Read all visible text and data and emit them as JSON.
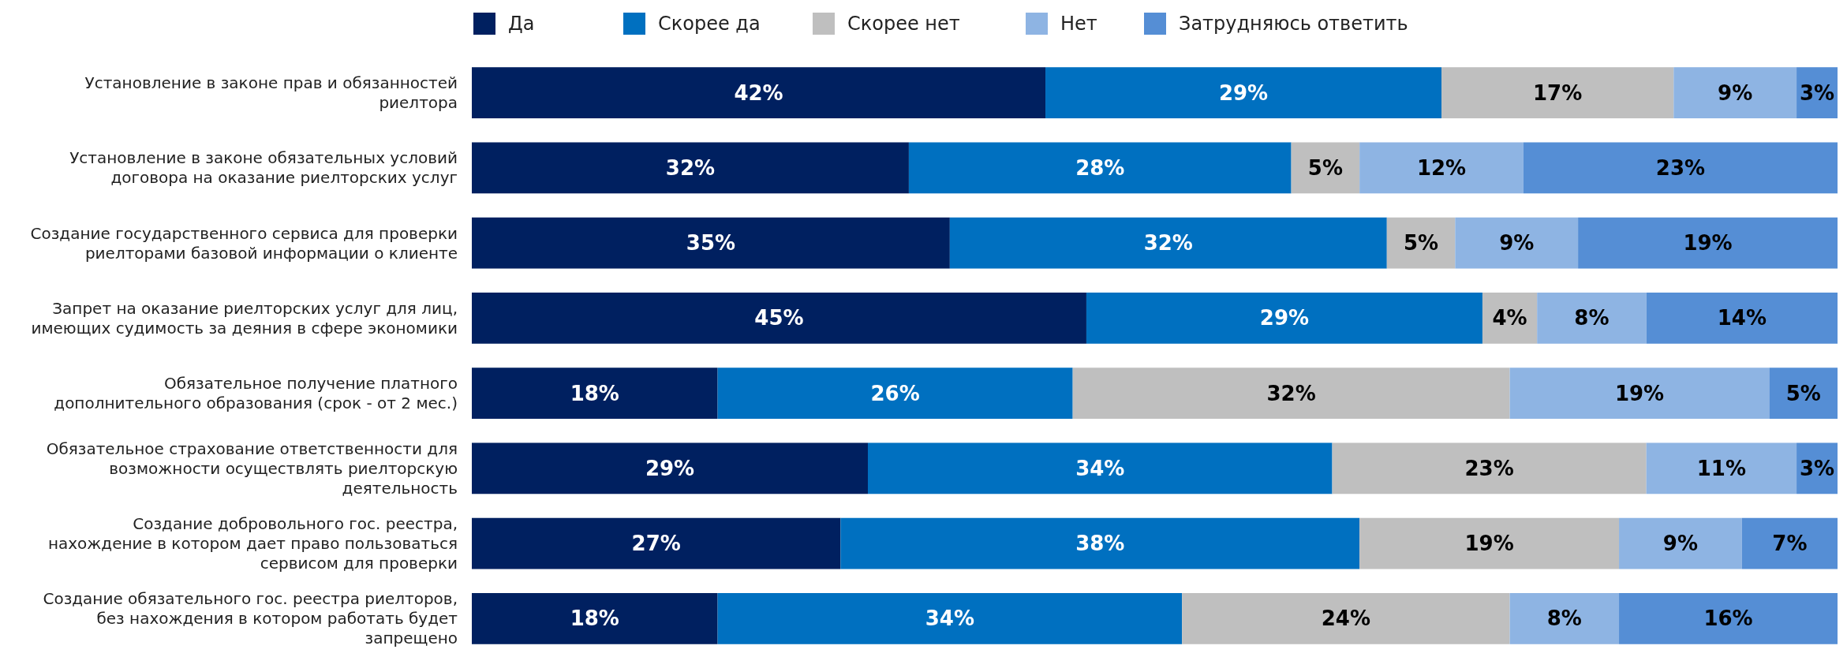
{
  "chart_data": {
    "type": "bar",
    "orientation": "horizontal",
    "stacked": true,
    "legend": "top",
    "xlim": [
      0,
      100
    ],
    "tick_labels": "y",
    "categories": [
      "Установление в законе прав и обязанностей риелтора",
      "Установление в законе обязательных условий договора на оказание риелторских услуг",
      "Создание государственного сервиса для проверки риелторами базовой информации о клиенте",
      "Запрет на оказание риелторских услуг для лиц, имеющих судимость за деяния в сфере экономики",
      "Обязательное получение платного дополнительного образования (срок - от 2 мес.)",
      "Обязательное страхование ответственности для возможности осуществлять риелторскую деятельность",
      "Создание добровольного гос. реестра, нахождение в котором дает право пользоваться сервисом для проверки",
      "Создание обязательного гос. реестра риелторов, без нахождения в котором работать будет запрещено"
    ],
    "series": [
      {
        "name": "Да",
        "color": "#002060",
        "values": [
          42,
          32,
          35,
          45,
          18,
          29,
          27,
          18
        ],
        "value_labels": [
          "42%",
          "32%",
          "35%",
          "45%",
          "18%",
          "29%",
          "27%",
          "18%"
        ]
      },
      {
        "name": "Скорее да",
        "color": "#0070c0",
        "values": [
          29,
          28,
          32,
          29,
          26,
          34,
          38,
          34
        ],
        "value_labels": [
          "29%",
          "28%",
          "32%",
          "29%",
          "26%",
          "34%",
          "38%",
          "34%"
        ]
      },
      {
        "name": "Скорее нет",
        "color": "#bfbfbf",
        "values": [
          17,
          5,
          5,
          4,
          32,
          23,
          19,
          24
        ],
        "value_labels": [
          "17%",
          "5%",
          "5%",
          "4%",
          "32%",
          "23%",
          "19%",
          "24%"
        ]
      },
      {
        "name": "Нет",
        "color": "#8eb4e3",
        "values": [
          9,
          12,
          9,
          8,
          19,
          11,
          9,
          8
        ],
        "value_labels": [
          "9%",
          "12%",
          "9%",
          "8%",
          "19%",
          "11%",
          "9%",
          "8%"
        ]
      },
      {
        "name": "Затрудняюсь ответить",
        "color": "#558ed5",
        "values": [
          3,
          23,
          19,
          14,
          5,
          3,
          7,
          16
        ],
        "value_labels": [
          "3%",
          "23%",
          "19%",
          "14%",
          "5%",
          "3%",
          "7%",
          "16%"
        ]
      }
    ]
  }
}
